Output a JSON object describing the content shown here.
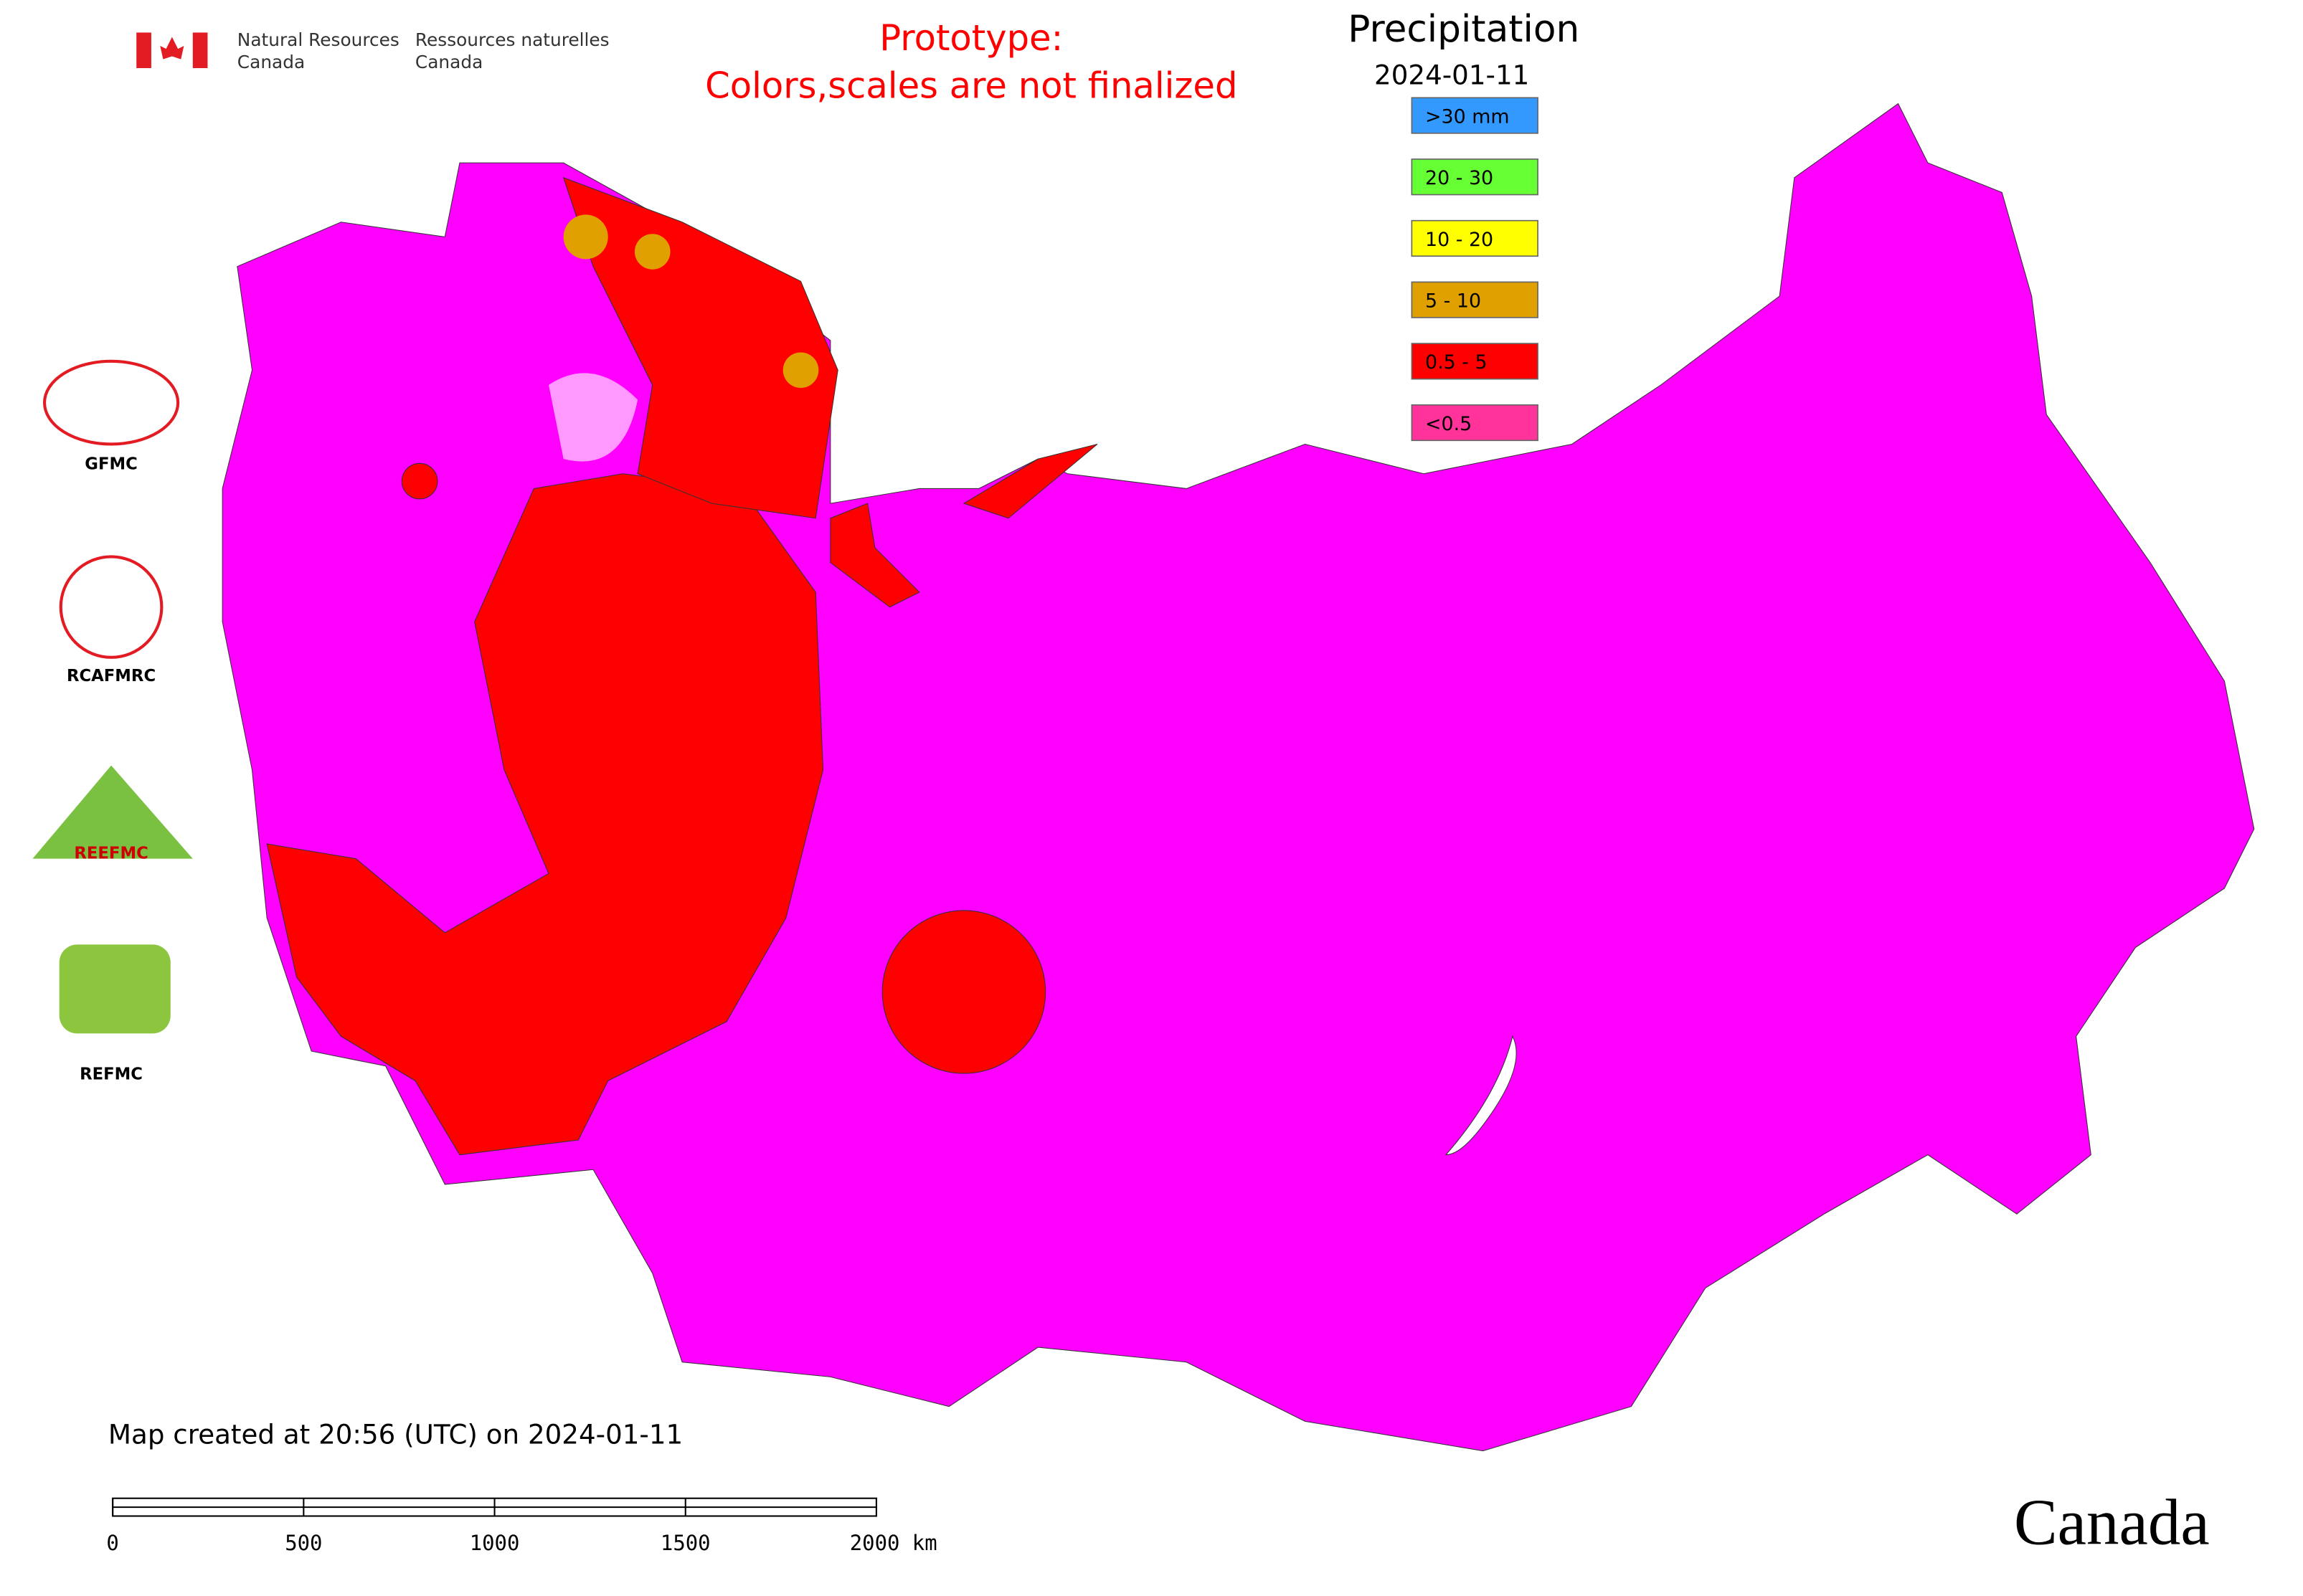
{
  "header": {
    "agency_en": "Natural Resources",
    "agency_en2": "Canada",
    "agency_fr": "Ressources naturelles",
    "agency_fr2": "Canada",
    "notice1": "Prototype:",
    "notice2": "Colors,scales are not finalized",
    "title": "Precipitation",
    "date": "2024-01-11"
  },
  "legend": [
    {
      "label": ">30 mm",
      "color": "#3399ff"
    },
    {
      "label": "20 - 30",
      "color": "#66ff33"
    },
    {
      "label": "10 - 20",
      "color": "#ffff00"
    },
    {
      "label": "5 - 10",
      "color": "#e0a000"
    },
    {
      "label": "0.5 - 5",
      "color": "#ff0000"
    },
    {
      "label": "<0.5",
      "color": "#ff3399"
    }
  ],
  "logos": [
    "GFMC",
    "RCAFMRC",
    "REEFMC",
    "REFMC"
  ],
  "footer": {
    "created": "Map created at 20:56 (UTC) on 2024-01-11",
    "wordmark": "Canada"
  },
  "scale_bar": [
    "0",
    "500",
    "1000",
    "1500",
    "2000 km"
  ]
}
